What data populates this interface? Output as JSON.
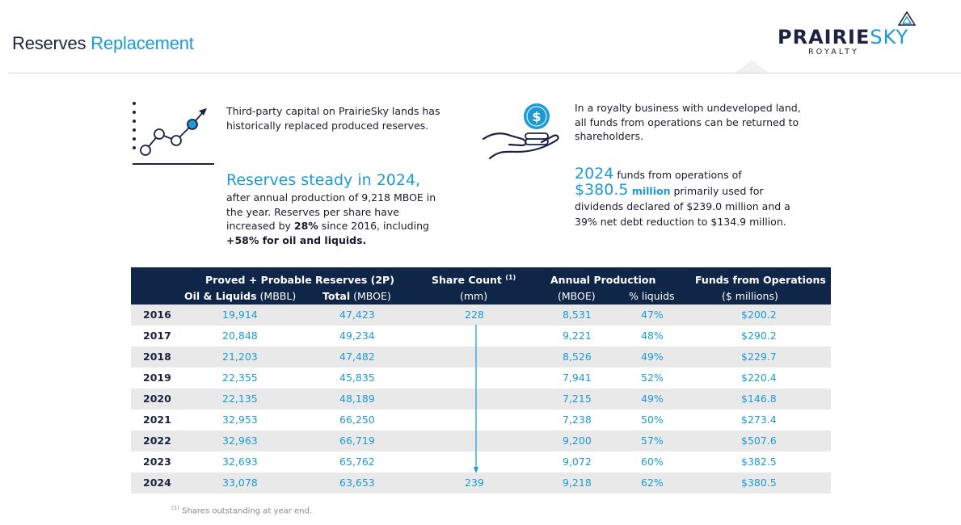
{
  "header": {
    "title_part1": "Reserves",
    "title_part2": "Replacement"
  },
  "logo": {
    "main_a": "PRAIRIE",
    "main_b": "SKY",
    "sub": "ROYALTY",
    "brand_color": "#1c9ad6",
    "navy_color": "#1a2340"
  },
  "left_block": {
    "icon": "growth-chart-icon",
    "text": "Third-party capital on PrairieSky lands has historically replaced produced reserves.",
    "headline": "Reserves steady in 2024,",
    "body_a": "after annual production of 9,218 MBOE in the year. Reserves per share have increased by ",
    "body_bold1": "28%",
    "body_b": " since 2016, including ",
    "body_bold2": "+58% for oil and liquids."
  },
  "right_block": {
    "icon": "hand-with-coins-icon",
    "text": "In a royalty business with undeveloped land, all funds from operations can be returned to shareholders.",
    "year": "2024",
    "line1": " funds from operations of",
    "amount": "$380.5",
    "million": " million",
    "rest": " primarily used for dividends declared of $239.0 million and a 39% net debt reduction to $134.9 million."
  },
  "table": {
    "headers": {
      "group_2p": "Proved + Probable Reserves (2P)",
      "oil_a": "Oil & Liquids",
      "oil_b": " (MBBL)",
      "total_a": "Total",
      "total_b": " (MBOE)",
      "share_a": "Share Count",
      "share_sup": "(1)",
      "share_b": "(mm)",
      "ap": "Annual Production",
      "ap_mboe": "(MBOE)",
      "ap_liq": "% liquids",
      "ffo": "Funds from Operations",
      "ffo_unit": "($ millions)"
    },
    "rows": [
      {
        "year": "2016",
        "oil": "19,914",
        "total": "47,423",
        "share": "228",
        "prod": "8,531",
        "liq": "47%",
        "ffo": "$200.2"
      },
      {
        "year": "2017",
        "oil": "20,848",
        "total": "49,234",
        "share": "",
        "prod": "9,221",
        "liq": "48%",
        "ffo": "$290.2"
      },
      {
        "year": "2018",
        "oil": "21,203",
        "total": "47,482",
        "share": "",
        "prod": "8,526",
        "liq": "49%",
        "ffo": "$229.7"
      },
      {
        "year": "2019",
        "oil": "22,355",
        "total": "45,835",
        "share": "",
        "prod": "7,941",
        "liq": "52%",
        "ffo": "$220.4"
      },
      {
        "year": "2020",
        "oil": "22,135",
        "total": "48,189",
        "share": "",
        "prod": "7,215",
        "liq": "49%",
        "ffo": "$146.8"
      },
      {
        "year": "2021",
        "oil": "32,953",
        "total": "66,250",
        "share": "",
        "prod": "7,238",
        "liq": "50%",
        "ffo": "$273.4"
      },
      {
        "year": "2022",
        "oil": "32,963",
        "total": "66,719",
        "share": "",
        "prod": "9,200",
        "liq": "57%",
        "ffo": "$507.6"
      },
      {
        "year": "2023",
        "oil": "32,693",
        "total": "65,762",
        "share": "",
        "prod": "9,072",
        "liq": "60%",
        "ffo": "$382.5"
      },
      {
        "year": "2024",
        "oil": "33,078",
        "total": "63,653",
        "share": "239",
        "prod": "9,218",
        "liq": "62%",
        "ffo": "$380.5"
      }
    ]
  },
  "footnote": {
    "sup": "(1)",
    "text": " Shares outstanding at year end."
  }
}
